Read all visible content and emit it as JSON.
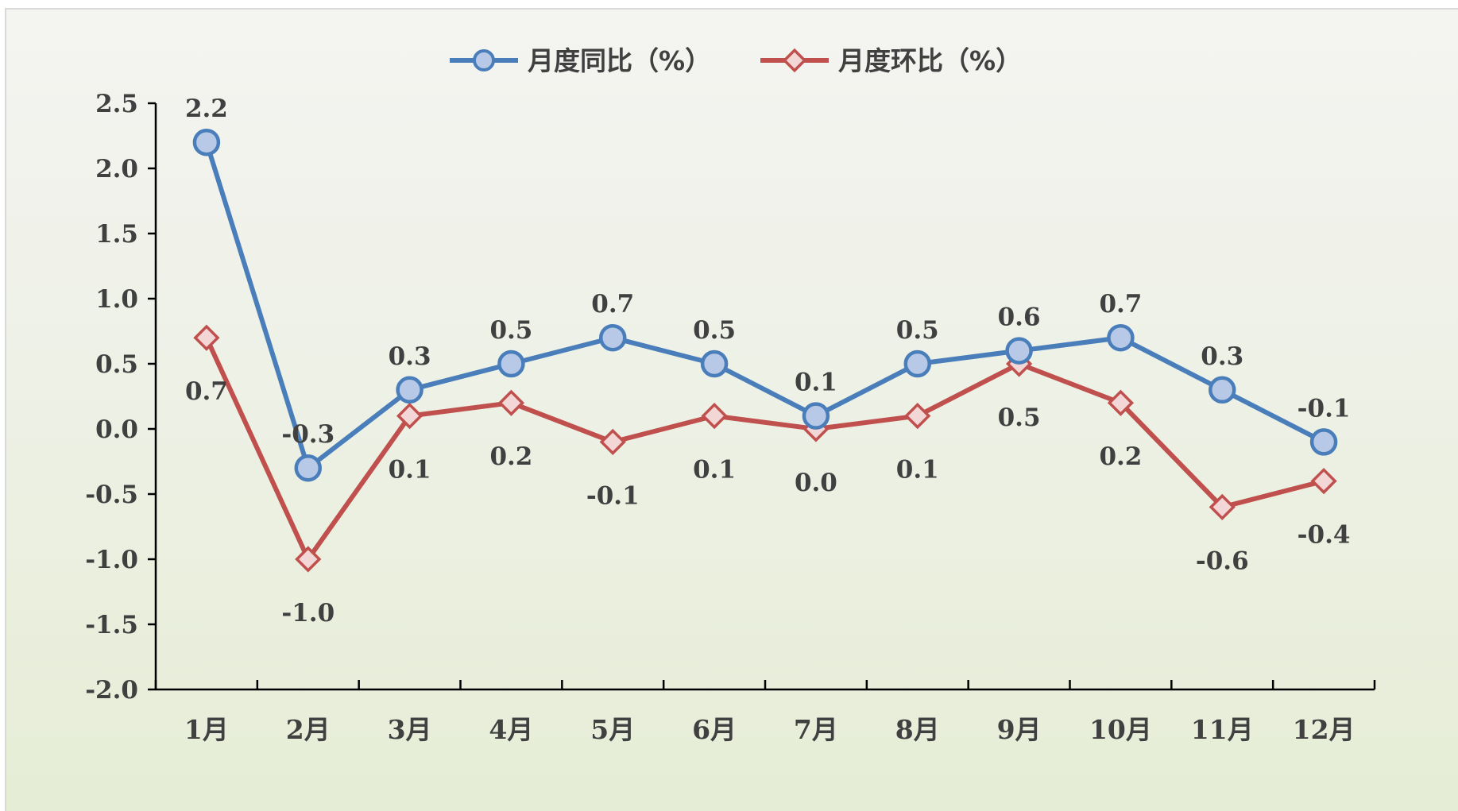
{
  "chart_data": {
    "type": "line",
    "title": "",
    "xlabel": "",
    "ylabel": "",
    "categories": [
      "1月",
      "2月",
      "3月",
      "4月",
      "5月",
      "6月",
      "7月",
      "8月",
      "9月",
      "10月",
      "11月",
      "12月"
    ],
    "ylim": [
      -2.0,
      2.5
    ],
    "yticks": [
      "2.5",
      "2.0",
      "1.5",
      "1.0",
      "0.5",
      "0.0",
      "-0.5",
      "-1.0",
      "-1.5",
      "-2.0"
    ],
    "grid": false,
    "legend_position": "top-center",
    "series": [
      {
        "name": "月度同比（%）",
        "color": "#4a7ebb",
        "marker": "circle",
        "values": [
          2.2,
          -0.3,
          0.3,
          0.5,
          0.7,
          0.5,
          0.1,
          0.5,
          0.6,
          0.7,
          0.3,
          -0.1
        ],
        "labels": [
          "2.2",
          "-0.3",
          "0.3",
          "0.5",
          "0.7",
          "0.5",
          "0.1",
          "0.5",
          "0.6",
          "0.7",
          "0.3",
          "-0.1"
        ]
      },
      {
        "name": "月度环比（%）",
        "color": "#c0504d",
        "marker": "diamond",
        "values": [
          0.7,
          -1.0,
          0.1,
          0.2,
          -0.1,
          0.1,
          0.0,
          0.1,
          0.5,
          0.2,
          -0.6,
          -0.4
        ],
        "labels": [
          "0.7",
          "-1.0",
          "0.1",
          "0.2",
          "-0.1",
          "0.1",
          "0.0",
          "0.1",
          "0.5",
          "0.2",
          "-0.6",
          "-0.4"
        ]
      }
    ]
  }
}
